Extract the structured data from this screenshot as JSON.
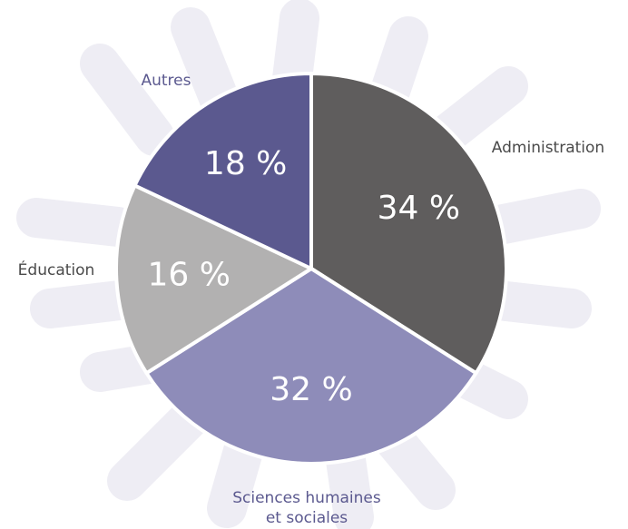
{
  "chart_data": {
    "type": "pie",
    "categories": [
      "Administration",
      "Sciences humaines et sociales",
      "Éducation",
      "Autres"
    ],
    "values": [
      34,
      32,
      16,
      18
    ],
    "value_labels": [
      "34 %",
      "32 %",
      "16 %",
      "18 %"
    ],
    "colors": [
      "#5f5d5d",
      "#8e8cb9",
      "#b2b1b1",
      "#5b598f"
    ],
    "label_colors": [
      "#4a4a4a",
      "#5b598f",
      "#4a4a4a",
      "#5b598f"
    ]
  }
}
